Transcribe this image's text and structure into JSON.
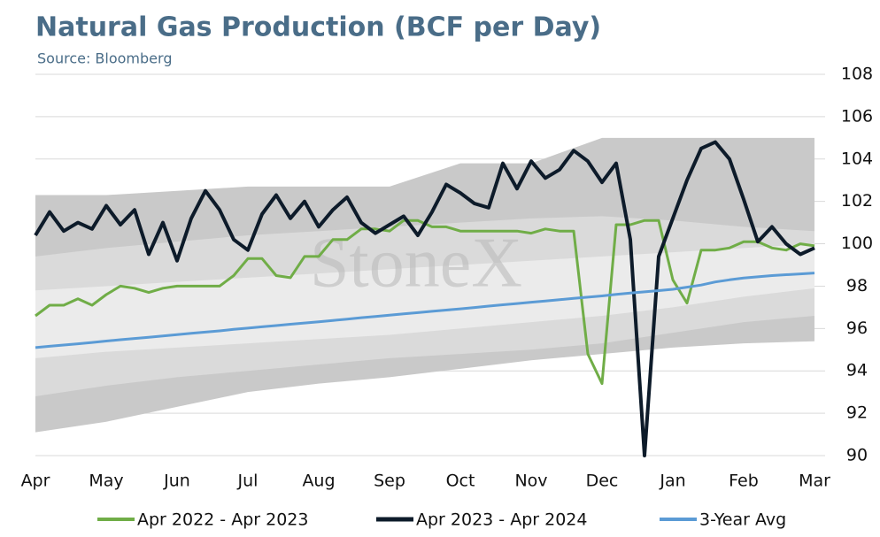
{
  "chart_data": {
    "type": "line",
    "title": "Natural Gas Production (BCF per Day)",
    "subtitle": "Source: Bloomberg",
    "watermark": "StoneX",
    "x": [
      0,
      0.2,
      0.4,
      0.6,
      0.8,
      1,
      1.2,
      1.4,
      1.6,
      1.8,
      2,
      2.2,
      2.4,
      2.6,
      2.8,
      3,
      3.2,
      3.4,
      3.6,
      3.8,
      4,
      4.2,
      4.4,
      4.6,
      4.8,
      5,
      5.2,
      5.4,
      5.6,
      5.8,
      6,
      6.2,
      6.4,
      6.6,
      6.8,
      7,
      7.2,
      7.4,
      7.6,
      7.8,
      8,
      8.2,
      8.4,
      8.6,
      8.8,
      9,
      9.2,
      9.4,
      9.6,
      9.8,
      10,
      10.2,
      10.4,
      10.6,
      10.8,
      11
    ],
    "xlim": [
      0,
      11.15
    ],
    "xticks": [
      {
        "value": 0,
        "label": "Apr"
      },
      {
        "value": 1,
        "label": "May"
      },
      {
        "value": 2,
        "label": "Jun"
      },
      {
        "value": 3,
        "label": "Jul"
      },
      {
        "value": 4,
        "label": "Aug"
      },
      {
        "value": 5,
        "label": "Sep"
      },
      {
        "value": 6,
        "label": "Oct"
      },
      {
        "value": 7,
        "label": "Nov"
      },
      {
        "value": 8,
        "label": "Dec"
      },
      {
        "value": 9,
        "label": "Jan"
      },
      {
        "value": 10,
        "label": "Feb"
      },
      {
        "value": 11,
        "label": "Mar"
      }
    ],
    "ylim": [
      90,
      108
    ],
    "yticks": [
      90,
      92,
      94,
      96,
      98,
      100,
      102,
      104,
      106,
      108
    ],
    "grid": true,
    "bands": [
      {
        "color": "#c9c9c9",
        "x": [
          0,
          1,
          2,
          3,
          4,
          5,
          6,
          7,
          8,
          9,
          10,
          11
        ],
        "upper": [
          102.3,
          102.3,
          102.5,
          102.7,
          102.7,
          102.7,
          103.8,
          103.8,
          105,
          105,
          105,
          105
        ],
        "lower": [
          91.1,
          91.6,
          92.3,
          93,
          93.4,
          93.7,
          94.1,
          94.5,
          94.8,
          95.1,
          95.3,
          95.4
        ]
      },
      {
        "color": "#dadada",
        "x": [
          0,
          1,
          2,
          3,
          4,
          5,
          6,
          7,
          8,
          9,
          10,
          11
        ],
        "upper": [
          99.4,
          99.8,
          100.1,
          100.4,
          100.6,
          100.8,
          101,
          101.2,
          101.3,
          101.1,
          100.8,
          100.6
        ],
        "lower": [
          92.8,
          93.3,
          93.7,
          94,
          94.3,
          94.6,
          94.8,
          95,
          95.3,
          95.8,
          96.3,
          96.6
        ]
      },
      {
        "color": "#ebebeb",
        "x": [
          0,
          1,
          2,
          3,
          4,
          5,
          6,
          7,
          8,
          9,
          10,
          11
        ],
        "upper": [
          97.8,
          98,
          98.2,
          98.4,
          98.6,
          98.8,
          99,
          99.2,
          99.4,
          99.6,
          99.8,
          100
        ],
        "lower": [
          94.6,
          94.9,
          95.1,
          95.3,
          95.5,
          95.7,
          96,
          96.3,
          96.6,
          97,
          97.5,
          97.9
        ]
      }
    ],
    "series": [
      {
        "name": "Apr 2022 - Apr 2023",
        "color": "#70ad47",
        "width": 3,
        "values": [
          96.6,
          97.1,
          97.1,
          97.4,
          97.1,
          97.6,
          98,
          97.9,
          97.7,
          97.9,
          98,
          98,
          98,
          98,
          98.5,
          99.3,
          99.3,
          98.5,
          98.4,
          99.4,
          99.4,
          100.2,
          100.2,
          100.7,
          100.7,
          100.6,
          101.1,
          101.1,
          100.8,
          100.8,
          100.6,
          100.6,
          100.6,
          100.6,
          100.6,
          100.5,
          100.7,
          100.6,
          100.6,
          94.8,
          93.4,
          100.9,
          100.9,
          101.1,
          101.1,
          98.3,
          97.2,
          99.7,
          99.7,
          99.8,
          100.1,
          100.1,
          99.8,
          99.7,
          100,
          99.9
        ]
      },
      {
        "name": "Apr 2023 - Apr 2024",
        "color": "#0d1b2a",
        "width": 4,
        "values": [
          100.4,
          101.5,
          100.6,
          101,
          100.7,
          101.8,
          100.9,
          101.6,
          99.5,
          101,
          99.2,
          101.2,
          102.5,
          101.6,
          100.2,
          99.7,
          101.4,
          102.3,
          101.2,
          102,
          100.8,
          101.6,
          102.2,
          101,
          100.5,
          100.9,
          101.3,
          100.4,
          101.5,
          102.8,
          102.4,
          101.9,
          101.7,
          103.8,
          102.6,
          103.9,
          103.1,
          103.5,
          104.4,
          103.9,
          102.9,
          103.8,
          100.2,
          90,
          99.4,
          101.2,
          103,
          104.5,
          104.8,
          104,
          102.1,
          100.1,
          100.8,
          100,
          99.5,
          99.8
        ]
      },
      {
        "name": "3-Year Avg",
        "color": "#5b9bd5",
        "width": 3,
        "values": [
          95.1,
          95.16,
          95.22,
          95.28,
          95.34,
          95.41,
          95.47,
          95.53,
          95.59,
          95.65,
          95.71,
          95.77,
          95.83,
          95.89,
          95.96,
          96.02,
          96.08,
          96.14,
          96.2,
          96.26,
          96.32,
          96.38,
          96.44,
          96.51,
          96.57,
          96.63,
          96.69,
          96.75,
          96.81,
          96.87,
          96.93,
          96.99,
          97.06,
          97.12,
          97.18,
          97.24,
          97.3,
          97.36,
          97.42,
          97.48,
          97.54,
          97.61,
          97.67,
          97.73,
          97.79,
          97.85,
          97.95,
          98.05,
          98.2,
          98.3,
          98.38,
          98.44,
          98.5,
          98.54,
          98.58,
          98.62
        ]
      }
    ]
  }
}
